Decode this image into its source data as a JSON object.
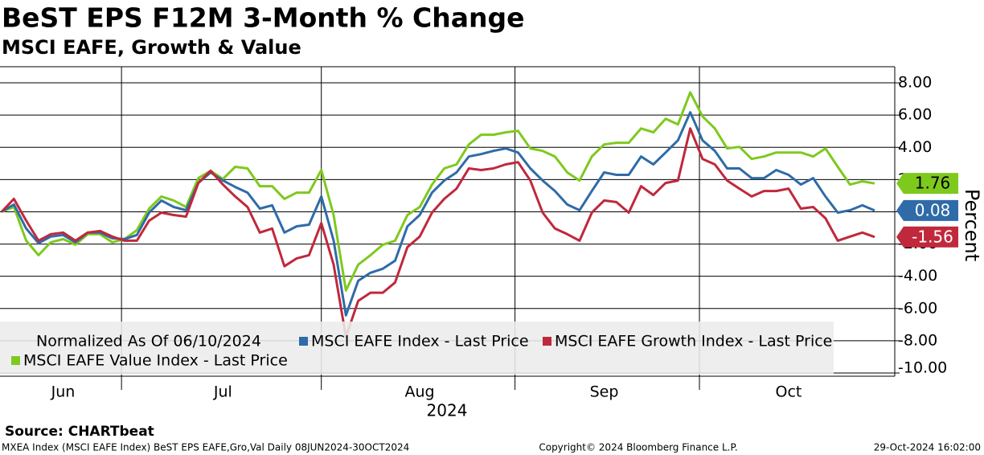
{
  "chart_data": {
    "type": "line",
    "title": "BeST EPS F12M 3-Month % Change",
    "subtitle": "MSCI EAFE, Growth & Value",
    "y_label": "Percent",
    "x_label": "2024",
    "legend_title": "Normalized As Of 06/10/2024",
    "categories": [
      null,
      null,
      null,
      null,
      null,
      "Jun",
      null,
      null,
      null,
      null,
      null,
      null,
      null,
      null,
      null,
      null,
      null,
      null,
      "Jul",
      null,
      null,
      null,
      null,
      null,
      null,
      null,
      null,
      null,
      null,
      null,
      null,
      null,
      null,
      null,
      "Aug",
      null,
      null,
      null,
      null,
      null,
      null,
      null,
      null,
      null,
      null,
      null,
      null,
      null,
      null,
      "Sep",
      null,
      null,
      null,
      null,
      null,
      null,
      null,
      null,
      null,
      null,
      null,
      null,
      null,
      null,
      "Oct",
      null,
      null,
      null,
      null,
      null,
      null,
      null
    ],
    "x_gridlines": [
      9.75,
      26,
      41.75,
      56.75
    ],
    "series": [
      {
        "name": "MSCI EAFE Index - Last Price",
        "color": "#2f6ba8",
        "text_color": "#ffffff",
        "values": [
          0,
          0.45,
          -1.04,
          -1.94,
          -1.54,
          -1.44,
          -1.89,
          -1.29,
          -1.29,
          -1.64,
          -1.69,
          -1.44,
          -0.05,
          0.7,
          0.3,
          0.1,
          1.79,
          2.44,
          1.94,
          1.54,
          1.19,
          0.2,
          0.4,
          -1.29,
          -0.9,
          -0.8,
          0.95,
          -1.79,
          -6.42,
          -4.28,
          -3.78,
          -3.53,
          -3.03,
          -0.9,
          -0.2,
          1.19,
          1.94,
          2.44,
          3.43,
          3.58,
          3.78,
          3.93,
          3.68,
          2.69,
          1.94,
          1.29,
          0.45,
          0.1,
          1.29,
          2.44,
          2.29,
          2.29,
          3.43,
          2.94,
          3.68,
          4.43,
          6.17,
          4.43,
          3.78,
          2.69,
          2.69,
          2.09,
          2.09,
          2.59,
          2.29,
          1.69,
          2.09,
          0.95,
          -0.05,
          0.1,
          0.4,
          0.08
        ]
      },
      {
        "name": "MSCI EAFE Growth Index - Last Price",
        "color": "#c0283c",
        "text_color": "#ffffff",
        "values": [
          0,
          0.8,
          -0.55,
          -1.79,
          -1.39,
          -1.29,
          -1.79,
          -1.29,
          -1.19,
          -1.54,
          -1.79,
          -1.79,
          -0.55,
          -0.05,
          -0.2,
          -0.3,
          1.79,
          2.54,
          1.69,
          0.95,
          0.3,
          -1.29,
          -1.04,
          -3.38,
          -2.89,
          -2.69,
          -0.7,
          -3.28,
          -7.76,
          -5.52,
          -5.02,
          -5.02,
          -4.38,
          -2.19,
          -1.54,
          -0.05,
          0.8,
          1.44,
          2.69,
          2.59,
          2.69,
          2.94,
          3.08,
          1.94,
          -0.05,
          -1.04,
          -1.39,
          -1.79,
          -0.05,
          0.7,
          0.6,
          -0.05,
          1.59,
          1.04,
          1.79,
          1.94,
          5.17,
          3.28,
          2.94,
          1.94,
          1.44,
          0.95,
          1.29,
          1.29,
          1.44,
          0.2,
          0.3,
          -0.4,
          -1.79,
          -1.54,
          -1.29,
          -1.56
        ]
      },
      {
        "name": "MSCI EAFE Value Index - Last Price",
        "color": "#7ec91e",
        "text_color": "#000000",
        "values": [
          0,
          0.3,
          -1.79,
          -2.69,
          -1.89,
          -1.69,
          -2.04,
          -1.39,
          -1.39,
          -1.89,
          -1.69,
          -1.14,
          0.2,
          0.95,
          0.7,
          0.3,
          2.09,
          2.54,
          2.04,
          2.79,
          2.69,
          1.59,
          1.59,
          0.8,
          1.19,
          1.19,
          2.59,
          -0.2,
          -4.88,
          -3.28,
          -2.69,
          -2.04,
          -1.79,
          -0.2,
          0.3,
          1.69,
          2.69,
          2.94,
          4.18,
          4.78,
          4.78,
          4.93,
          5.02,
          3.93,
          3.78,
          3.43,
          2.44,
          1.94,
          3.43,
          4.18,
          4.28,
          4.28,
          5.17,
          4.93,
          5.77,
          5.42,
          7.41,
          5.92,
          5.17,
          3.93,
          4.03,
          3.28,
          3.43,
          3.68,
          3.68,
          3.68,
          3.43,
          3.93,
          2.79,
          1.69,
          1.89,
          1.76
        ]
      }
    ],
    "ylim": [
      -10.2,
      9.0
    ],
    "yticks": [
      {
        "value": 8,
        "label": "8.00"
      },
      {
        "value": 6,
        "label": "6.00"
      },
      {
        "value": 4,
        "label": "4.00"
      },
      {
        "value": 2,
        "label": "2.00"
      },
      {
        "value": 0,
        "label": "0.00"
      },
      {
        "value": -2,
        "label": "-2.00"
      },
      {
        "value": -4,
        "label": "-4.00"
      },
      {
        "value": -6,
        "label": "-6.00"
      },
      {
        "value": -8,
        "label": "-8.00"
      },
      {
        "value": -10,
        "label": "-10.00"
      }
    ],
    "grid": true
  },
  "footer": {
    "source": "Source: CHARTbeat",
    "description": "MXEA Index (MSCI EAFE Index) BeST EPS EAFE,Gro,Val  Daily 08JUN2024-30OCT2024",
    "copyright": "Copyright© 2024 Bloomberg Finance L.P.",
    "timestamp": "29-Oct-2024 16:02:00"
  }
}
